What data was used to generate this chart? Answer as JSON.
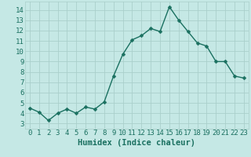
{
  "x": [
    0,
    1,
    2,
    3,
    4,
    5,
    6,
    7,
    8,
    9,
    10,
    11,
    12,
    13,
    14,
    15,
    16,
    17,
    18,
    19,
    20,
    21,
    22,
    23
  ],
  "y": [
    4.5,
    4.1,
    3.3,
    4.0,
    4.4,
    4.0,
    4.6,
    4.4,
    5.1,
    7.6,
    9.7,
    11.1,
    11.5,
    12.2,
    11.9,
    14.3,
    13.0,
    11.9,
    10.8,
    10.5,
    9.0,
    9.0,
    7.6,
    7.4
  ],
  "line_color": "#1a7060",
  "marker": "D",
  "marker_size": 2.5,
  "bg_color": "#c5e8e5",
  "grid_color": "#aacfcb",
  "xlabel": "Humidex (Indice chaleur)",
  "xlim": [
    -0.5,
    23.5
  ],
  "ylim": [
    2.5,
    14.8
  ],
  "yticks": [
    3,
    4,
    5,
    6,
    7,
    8,
    9,
    10,
    11,
    12,
    13,
    14
  ],
  "xticks": [
    0,
    1,
    2,
    3,
    4,
    5,
    6,
    7,
    8,
    9,
    10,
    11,
    12,
    13,
    14,
    15,
    16,
    17,
    18,
    19,
    20,
    21,
    22,
    23
  ],
  "xlabel_fontsize": 7.5,
  "tick_fontsize": 6.5,
  "tick_color": "#1a7060",
  "line_width": 1.0
}
